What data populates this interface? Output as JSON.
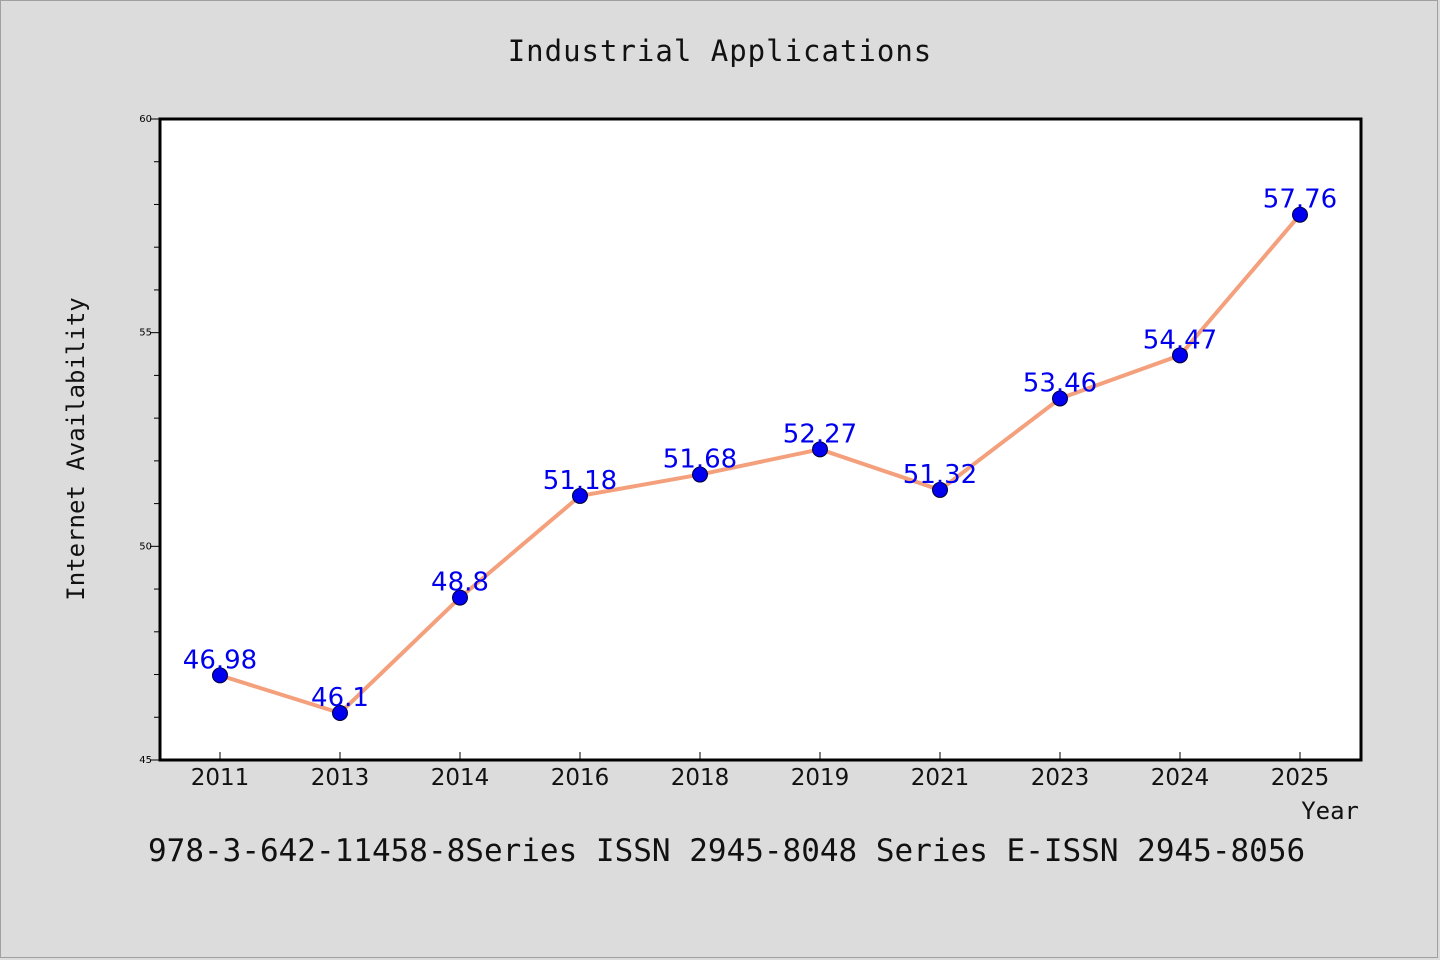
{
  "chart_data": {
    "type": "line",
    "title": "Industrial Applications",
    "xlabel": "Year",
    "ylabel": "Internet Availability",
    "categories": [
      "2011",
      "2013",
      "2014",
      "2016",
      "2018",
      "2019",
      "2021",
      "2023",
      "2024",
      "2025"
    ],
    "series": [
      {
        "values": [
          46.98,
          46.1,
          48.8,
          51.18,
          51.68,
          52.27,
          51.32,
          53.46,
          54.47,
          57.76
        ],
        "data_labels": [
          "46.98",
          "46.1",
          "48.8",
          "51.18",
          "51.68",
          "52.27",
          "51.32",
          "53.46",
          "54.47",
          "57.76"
        ],
        "line_color": "#f4a07c",
        "marker_color": "#0000ee",
        "label_color": "#0000ee"
      }
    ],
    "ylim": [
      45,
      60
    ],
    "yticks": [
      "45",
      "50",
      "55",
      "60"
    ],
    "grid": false,
    "legend": "none"
  },
  "footer": {
    "text": "978-3-642-11458-8Series ISSN 2945-8048 Series E-ISSN 2945-8056"
  },
  "colors": {
    "background": "#dcdcdc",
    "plot_background": "#ffffff"
  }
}
